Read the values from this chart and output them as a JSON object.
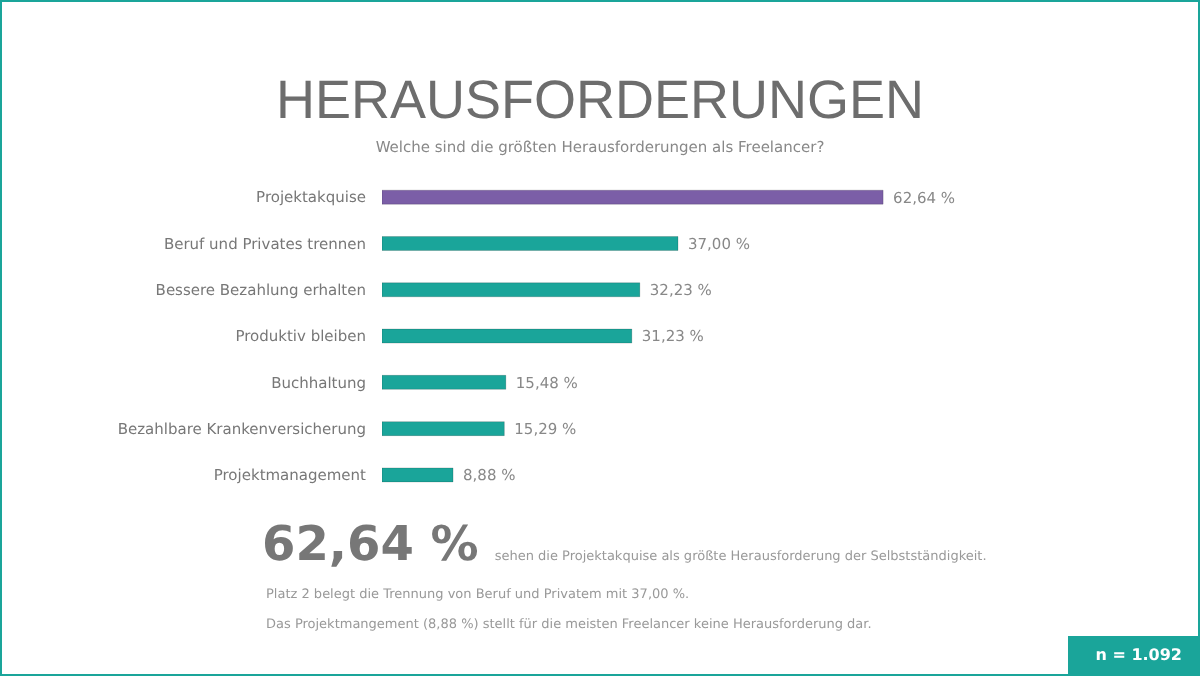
{
  "chart_data": {
    "type": "bar",
    "orientation": "horizontal",
    "title": "HERAUSFORDERUNGEN",
    "subtitle": "Welche sind die größten Herausforderungen  als Freelancer?",
    "categories": [
      "Projektakquise",
      "Beruf und Privates trennen",
      "Bessere Bezahlung erhalten",
      "Produktiv bleiben",
      "Buchhaltung",
      "Bezahlbare Krankenversicherung",
      "Projektmanagement"
    ],
    "values": [
      62.64,
      37.0,
      32.23,
      31.23,
      15.48,
      15.29,
      8.88
    ],
    "value_labels": [
      "62,64 %",
      "37,00 %",
      "32,23 %",
      "31,23 %",
      "15,48 %",
      "15,29 %",
      "8,88 %"
    ],
    "colors": [
      "#7b5ea7",
      "#1aa59a",
      "#1aa59a",
      "#1aa59a",
      "#1aa59a",
      "#1aa59a",
      "#1aa59a"
    ],
    "tick_labels": "y",
    "legend": false,
    "annotations": [
      "62,64 %",
      "sehen die Projektakquise als größte Herausforderung  der Selbstständigkeit.",
      "Platz 2 belegt die Trennung von Beruf und Privatem mit 37,00 %.",
      "Das Projektmangement (8,88 %) stellt für die meisten Freelancer  keine Herausforderung  dar.",
      "n = 1.092"
    ]
  }
}
